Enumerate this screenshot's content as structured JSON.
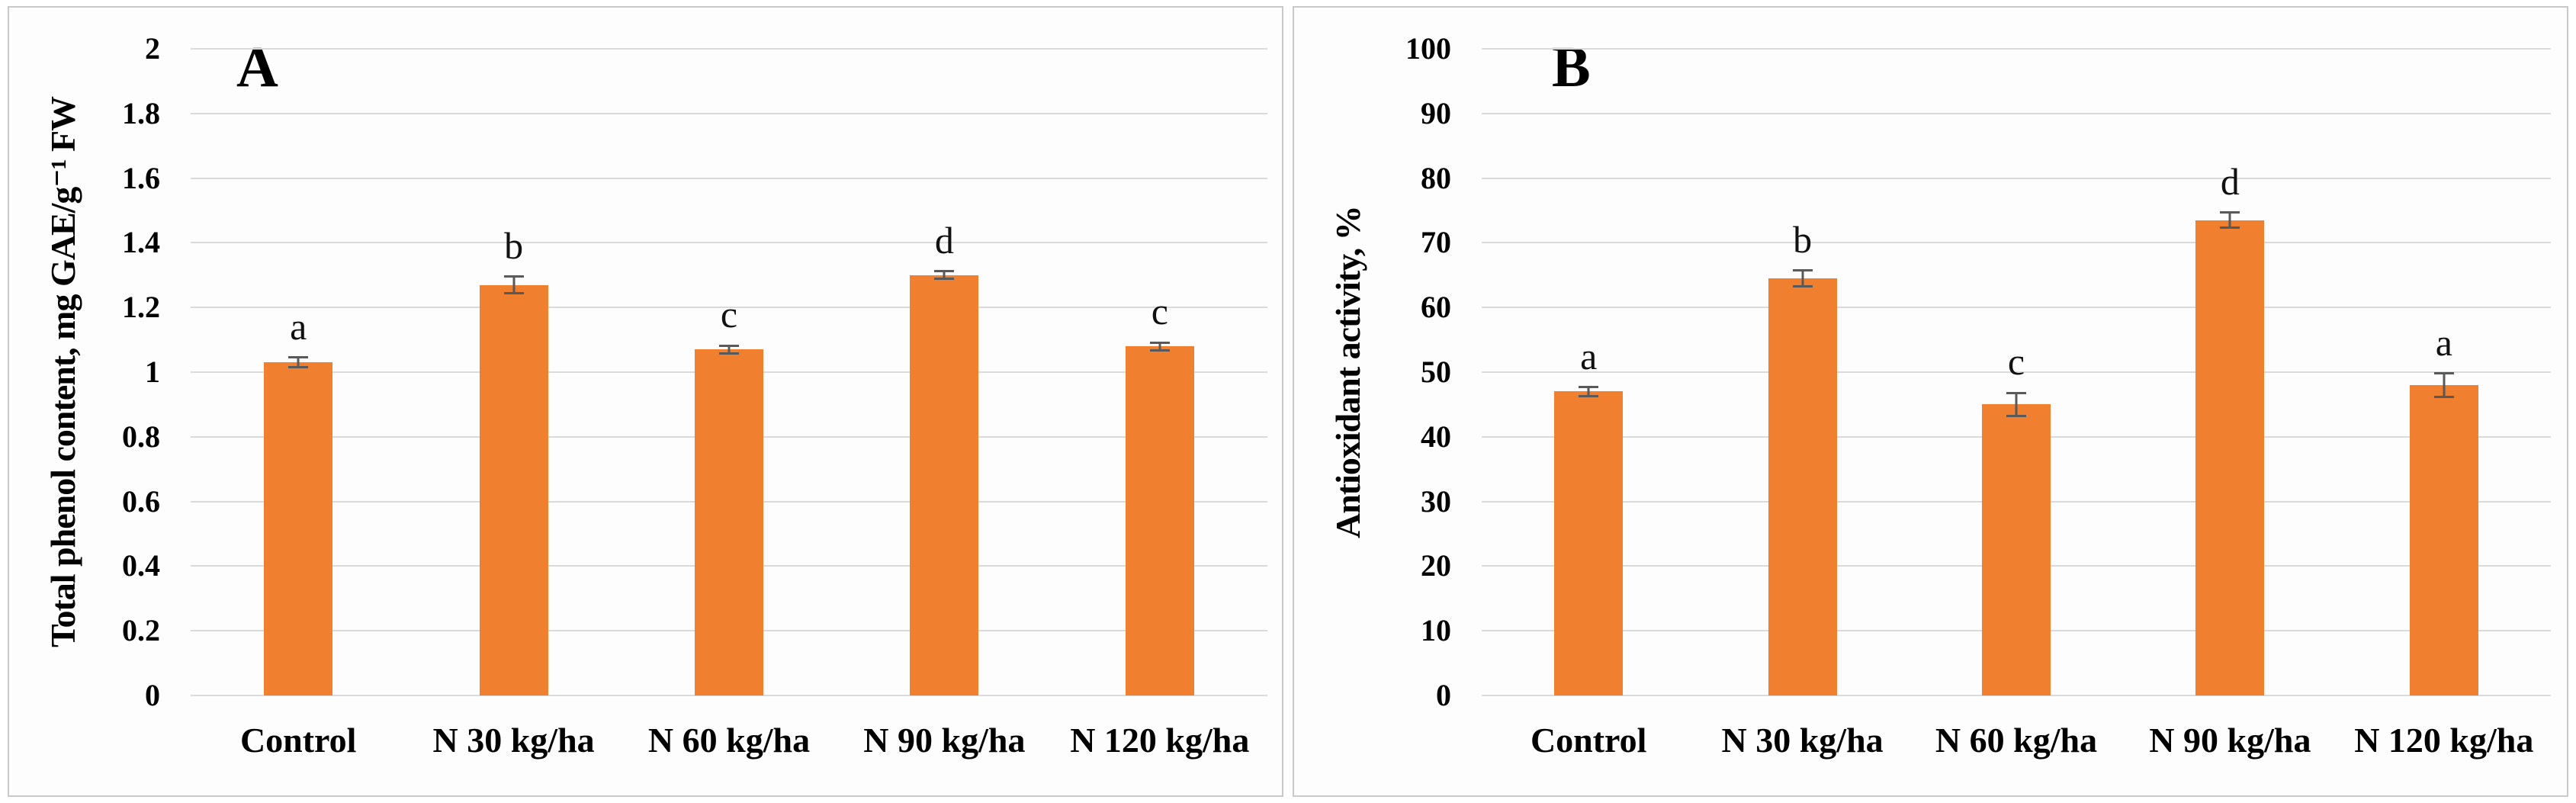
{
  "figure": {
    "description": "Two-panel bar chart figure with significance letters and error bars",
    "panel_a_label": "A",
    "panel_b_label": "B"
  },
  "chart_data": [
    {
      "type": "bar",
      "panel_label": "A",
      "title": "",
      "xlabel": "",
      "ylabel": "Total phenol content, mg GAE/g⁻¹ FW",
      "categories": [
        "Control",
        "N 30 kg/ha",
        "N 60 kg/ha",
        "N 90 kg/ha",
        "N 120 kg/ha"
      ],
      "values": [
        1.03,
        1.27,
        1.07,
        1.3,
        1.08
      ],
      "errors": [
        0.015,
        0.025,
        0.012,
        0.012,
        0.012
      ],
      "sig_letters": [
        "a",
        "b",
        "c",
        "d",
        "c"
      ],
      "ylim": [
        0,
        2
      ],
      "ystep": 0.2,
      "ytick_labels": [
        "0",
        "0.2",
        "0.4",
        "0.6",
        "0.8",
        "1",
        "1.2",
        "1.4",
        "1.6",
        "1.8",
        "2"
      ],
      "grid": true,
      "legend": "none",
      "bar_color": "#F0802F",
      "error_bar_color": "#595959"
    },
    {
      "type": "bar",
      "panel_label": "B",
      "title": "",
      "xlabel": "",
      "ylabel": "Antioxidant activity, %",
      "categories": [
        "Control",
        "N 30 kg/ha",
        "N 60 kg/ha",
        "N 90 kg/ha",
        "N 120 kg/ha"
      ],
      "values": [
        47,
        64.5,
        45,
        73.5,
        48
      ],
      "errors": [
        0.7,
        1.2,
        1.8,
        1.2,
        1.8
      ],
      "sig_letters": [
        "a",
        "b",
        "c",
        "d",
        "a"
      ],
      "ylim": [
        0,
        100
      ],
      "ystep": 10,
      "ytick_labels": [
        "0",
        "10",
        "20",
        "30",
        "40",
        "50",
        "60",
        "70",
        "80",
        "90",
        "100"
      ],
      "grid": true,
      "legend": "none",
      "bar_color": "#F0802F",
      "error_bar_color": "#595959"
    }
  ]
}
